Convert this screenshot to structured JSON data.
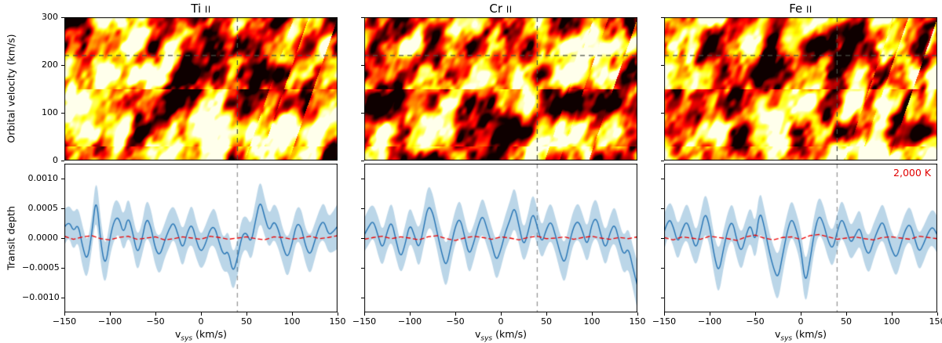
{
  "figure": {
    "top_ylabel": "Orbital velocity (km/s)",
    "bottom_ylabel": "Transit depth",
    "xlabel": {
      "prefix": "v",
      "sub": "sys",
      "suffix": " (km/s)"
    },
    "annotation": {
      "text": "2,000 K",
      "color": "#e10000"
    },
    "colors": {
      "line": "#2473b4",
      "band": "rgba(31,119,180,0.3)",
      "model": "#ee0000",
      "vline": "#999999",
      "crosshair": "#4a4f45",
      "frame": "#000000"
    }
  },
  "chart_data": [
    {
      "title": "Ti II",
      "species": "Ti",
      "ion": "II",
      "heatmap": {
        "type": "heatmap",
        "ylabel": "Orbital velocity (km/s)",
        "xlim": [
          -150,
          150
        ],
        "ylim": [
          0,
          300
        ],
        "yticks": [
          0,
          100,
          200,
          300
        ],
        "yticklabels": [
          "0",
          "100",
          "200",
          "300"
        ],
        "crosshair": {
          "vsys": 40,
          "kp": 220
        },
        "colormap": "hot",
        "seed": 7
      },
      "line": {
        "type": "line",
        "xlabel": "v_sys (km/s)",
        "ylabel": "Transit depth",
        "xlim": [
          -150,
          150
        ],
        "ylim": [
          -0.00125,
          0.00125
        ],
        "xticks": [
          -150,
          -100,
          -50,
          0,
          50,
          100,
          150
        ],
        "xticklabels": [
          "−150",
          "−100",
          "−50",
          "0",
          "50",
          "100",
          "150"
        ],
        "yticks": [
          -0.001,
          -0.0005,
          0,
          0.0005,
          0.001
        ],
        "yticklabels": [
          "−0.0010",
          "−0.0005",
          "0.0000",
          "0.0005",
          "0.0010"
        ],
        "vline": 40,
        "x_start": -150,
        "x_step": 5,
        "y_scale": 0.0001,
        "y": [
          1.8,
          3.0,
          1.0,
          2.5,
          -1.5,
          -4.0,
          0.5,
          7.5,
          -1.0,
          -5.0,
          0.0,
          3.2,
          3.5,
          0.5,
          3.8,
          1.0,
          -2.8,
          -0.5,
          3.5,
          2.0,
          -2.0,
          -3.0,
          -0.5,
          1.5,
          2.8,
          0.5,
          -2.0,
          1.0,
          2.5,
          -0.5,
          -2.5,
          -1.0,
          1.5,
          2.0,
          -0.8,
          -3.0,
          -2.0,
          -6.0,
          -3.5,
          0.5,
          1.0,
          -1.0,
          3.0,
          6.5,
          3.5,
          1.0,
          3.0,
          1.5,
          -1.5,
          -3.5,
          -1.0,
          2.5,
          2.0,
          -1.5,
          -3.0,
          -0.5,
          2.0,
          3.0,
          0.5,
          1.0,
          2.0
        ],
        "band_halfwidth": [
          3.0,
          2.7,
          3.2,
          2.8,
          3.5,
          3.1,
          2.6,
          3.4,
          3.8,
          3.2,
          2.9,
          3.3,
          2.7,
          3.0,
          3.4,
          2.8,
          3.1,
          2.6,
          3.2,
          3.0,
          2.8,
          3.3,
          2.9,
          3.1,
          2.7,
          3.0,
          3.2,
          2.8,
          3.4,
          3.0,
          2.9,
          3.1,
          2.7,
          3.3,
          3.0,
          2.8,
          3.5,
          3.2,
          2.9,
          3.0,
          2.7,
          3.1,
          3.3,
          3.6,
          3.1,
          2.8,
          3.0,
          3.2,
          2.9,
          3.4,
          3.0,
          2.8,
          3.1,
          2.9,
          3.3,
          3.0,
          2.7,
          3.2,
          3.0,
          3.4,
          3.8
        ],
        "model_x_start": -150,
        "model_x_step": 10,
        "model_y": [
          0.3,
          -0.2,
          0.2,
          0.4,
          -0.1,
          -0.3,
          0.1,
          0.3,
          -0.2,
          0.0,
          0.2,
          -0.3,
          -0.1,
          0.2,
          0.0,
          -0.2,
          0.3,
          0.1,
          -0.2,
          0.0,
          0.2,
          -0.1,
          -0.3,
          0.2,
          0.1,
          -0.2,
          0.0,
          0.3,
          -0.1,
          0.1,
          0.4
        ]
      }
    },
    {
      "title": "Cr II",
      "species": "Cr",
      "ion": "II",
      "heatmap": {
        "type": "heatmap",
        "xlim": [
          -150,
          150
        ],
        "ylim": [
          0,
          300
        ],
        "yticks": [
          0,
          100,
          200,
          300
        ],
        "yticklabels": [
          "0",
          "100",
          "200",
          "300"
        ],
        "crosshair": {
          "vsys": 40,
          "kp": 220
        },
        "colormap": "hot",
        "seed": 21
      },
      "line": {
        "type": "line",
        "xlabel": "v_sys (km/s)",
        "xlim": [
          -150,
          150
        ],
        "ylim": [
          -0.00125,
          0.00125
        ],
        "xticks": [
          -150,
          -100,
          -50,
          0,
          50,
          100,
          150
        ],
        "xticklabels": [
          "−150",
          "−100",
          "−50",
          "0",
          "50",
          "100",
          "150"
        ],
        "yticks": [
          -0.001,
          -0.0005,
          0,
          0.0005,
          0.001
        ],
        "yticklabels": [
          "−0.0010",
          "−0.0005",
          "0.0000",
          "0.0005",
          "0.0010"
        ],
        "vline": 40,
        "x_start": -150,
        "x_step": 5,
        "y_scale": 0.0001,
        "y": [
          0.5,
          2.0,
          3.0,
          0.5,
          -2.0,
          1.0,
          3.0,
          -0.5,
          -3.5,
          -1.0,
          2.5,
          0.5,
          -2.0,
          1.5,
          5.5,
          4.5,
          1.0,
          -2.5,
          -5.0,
          -1.5,
          2.0,
          3.5,
          0.5,
          -3.0,
          -1.0,
          2.0,
          4.0,
          1.5,
          -1.0,
          -4.0,
          -2.0,
          1.0,
          3.0,
          5.5,
          2.0,
          -1.5,
          1.0,
          4.5,
          2.0,
          -1.0,
          1.5,
          3.0,
          0.5,
          -2.5,
          -4.5,
          -1.0,
          2.0,
          3.0,
          1.0,
          -1.5,
          2.5,
          3.5,
          0.5,
          -2.0,
          1.0,
          2.5,
          -0.5,
          -3.0,
          -1.5,
          -5.0,
          -8.0
        ],
        "band_halfwidth": [
          2.8,
          3.1,
          2.7,
          3.3,
          3.0,
          2.9,
          3.4,
          3.0,
          2.6,
          3.2,
          3.0,
          2.8,
          3.3,
          3.1,
          3.6,
          3.2,
          2.9,
          3.4,
          3.7,
          3.0,
          2.8,
          3.2,
          2.9,
          3.3,
          3.0,
          2.7,
          3.1,
          3.0,
          2.8,
          3.4,
          3.1,
          2.9,
          3.2,
          3.5,
          3.0,
          2.8,
          3.1,
          3.3,
          3.0,
          2.7,
          3.0,
          3.2,
          2.9,
          3.1,
          3.4,
          3.0,
          2.8,
          3.1,
          2.9,
          3.0,
          3.2,
          3.3,
          2.9,
          3.0,
          2.8,
          3.1,
          3.0,
          3.2,
          3.4,
          3.6,
          4.0
        ],
        "model_x_start": -150,
        "model_x_step": 10,
        "model_y": [
          -0.2,
          0.1,
          0.3,
          -0.1,
          0.2,
          0.0,
          -0.3,
          0.2,
          0.4,
          -0.1,
          -0.4,
          0.0,
          0.3,
          0.1,
          -0.2,
          0.2,
          0.0,
          -0.3,
          0.1,
          0.3,
          -0.1,
          0.0,
          0.2,
          -0.2,
          0.1,
          0.3,
          0.0,
          -0.2,
          0.1,
          -0.1,
          0.2
        ]
      }
    },
    {
      "title": "Fe II",
      "species": "Fe",
      "ion": "II",
      "heatmap": {
        "type": "heatmap",
        "xlim": [
          -150,
          150
        ],
        "ylim": [
          0,
          300
        ],
        "yticks": [
          0,
          100,
          200,
          300
        ],
        "yticklabels": [
          "0",
          "100",
          "200",
          "300"
        ],
        "crosshair": {
          "vsys": 40,
          "kp": 220
        },
        "colormap": "hot",
        "seed": 42
      },
      "line": {
        "type": "line",
        "xlabel": "v_sys (km/s)",
        "xlim": [
          -150,
          150
        ],
        "ylim": [
          -0.00125,
          0.00125
        ],
        "xticks": [
          -150,
          -100,
          -50,
          0,
          50,
          100,
          150
        ],
        "xticklabels": [
          "−150",
          "−100",
          "−50",
          "0",
          "50",
          "100",
          "150"
        ],
        "yticks": [
          -0.001,
          -0.0005,
          0,
          0.0005,
          0.001
        ],
        "yticklabels": [
          "−0.0010",
          "−0.0005",
          "0.0000",
          "0.0005",
          "0.0010"
        ],
        "vline": 40,
        "x_start": -150,
        "x_step": 5,
        "y_scale": 0.0001,
        "y": [
          1.0,
          3.5,
          2.0,
          -1.0,
          1.5,
          3.0,
          0.5,
          -2.0,
          1.0,
          4.5,
          2.0,
          -3.0,
          -6.0,
          -2.0,
          1.5,
          3.0,
          -0.5,
          -2.5,
          0.5,
          2.5,
          -1.0,
          4.8,
          2.0,
          -2.0,
          -5.0,
          -7.0,
          -3.0,
          1.0,
          3.5,
          1.5,
          -1.5,
          -8.0,
          -4.0,
          1.0,
          4.0,
          2.5,
          -0.5,
          -2.0,
          1.0,
          3.5,
          1.5,
          -1.0,
          0.5,
          2.0,
          -1.5,
          -3.0,
          -0.5,
          1.5,
          3.0,
          0.5,
          -2.0,
          -3.5,
          -1.0,
          1.5,
          2.5,
          0.0,
          -2.5,
          -1.0,
          1.0,
          2.0,
          0.5
        ],
        "band_halfwidth": [
          3.0,
          2.8,
          3.2,
          3.0,
          2.7,
          3.1,
          3.3,
          2.9,
          3.0,
          3.4,
          3.1,
          3.3,
          3.8,
          3.2,
          2.9,
          3.1,
          3.0,
          3.2,
          2.8,
          3.0,
          3.1,
          3.5,
          3.0,
          3.2,
          3.6,
          3.9,
          3.3,
          3.0,
          3.1,
          2.9,
          3.0,
          3.7,
          3.3,
          3.0,
          3.2,
          3.0,
          2.8,
          3.1,
          2.9,
          3.2,
          3.0,
          2.8,
          3.0,
          3.1,
          2.9,
          3.2,
          3.0,
          2.8,
          3.1,
          3.0,
          2.9,
          3.2,
          3.0,
          2.8,
          3.0,
          2.9,
          3.1,
          3.0,
          2.8,
          3.0,
          3.1
        ],
        "model_x_start": -150,
        "model_x_step": 10,
        "model_y": [
          0.1,
          -0.3,
          0.2,
          0.0,
          -0.2,
          0.3,
          0.1,
          -0.1,
          -0.4,
          0.2,
          0.5,
          0.0,
          -0.3,
          0.1,
          0.2,
          -0.2,
          0.4,
          0.6,
          0.2,
          -0.2,
          0.0,
          0.2,
          -0.1,
          -0.3,
          0.1,
          0.2,
          0.0,
          -0.2,
          0.3,
          0.1,
          -0.1
        ]
      }
    }
  ]
}
